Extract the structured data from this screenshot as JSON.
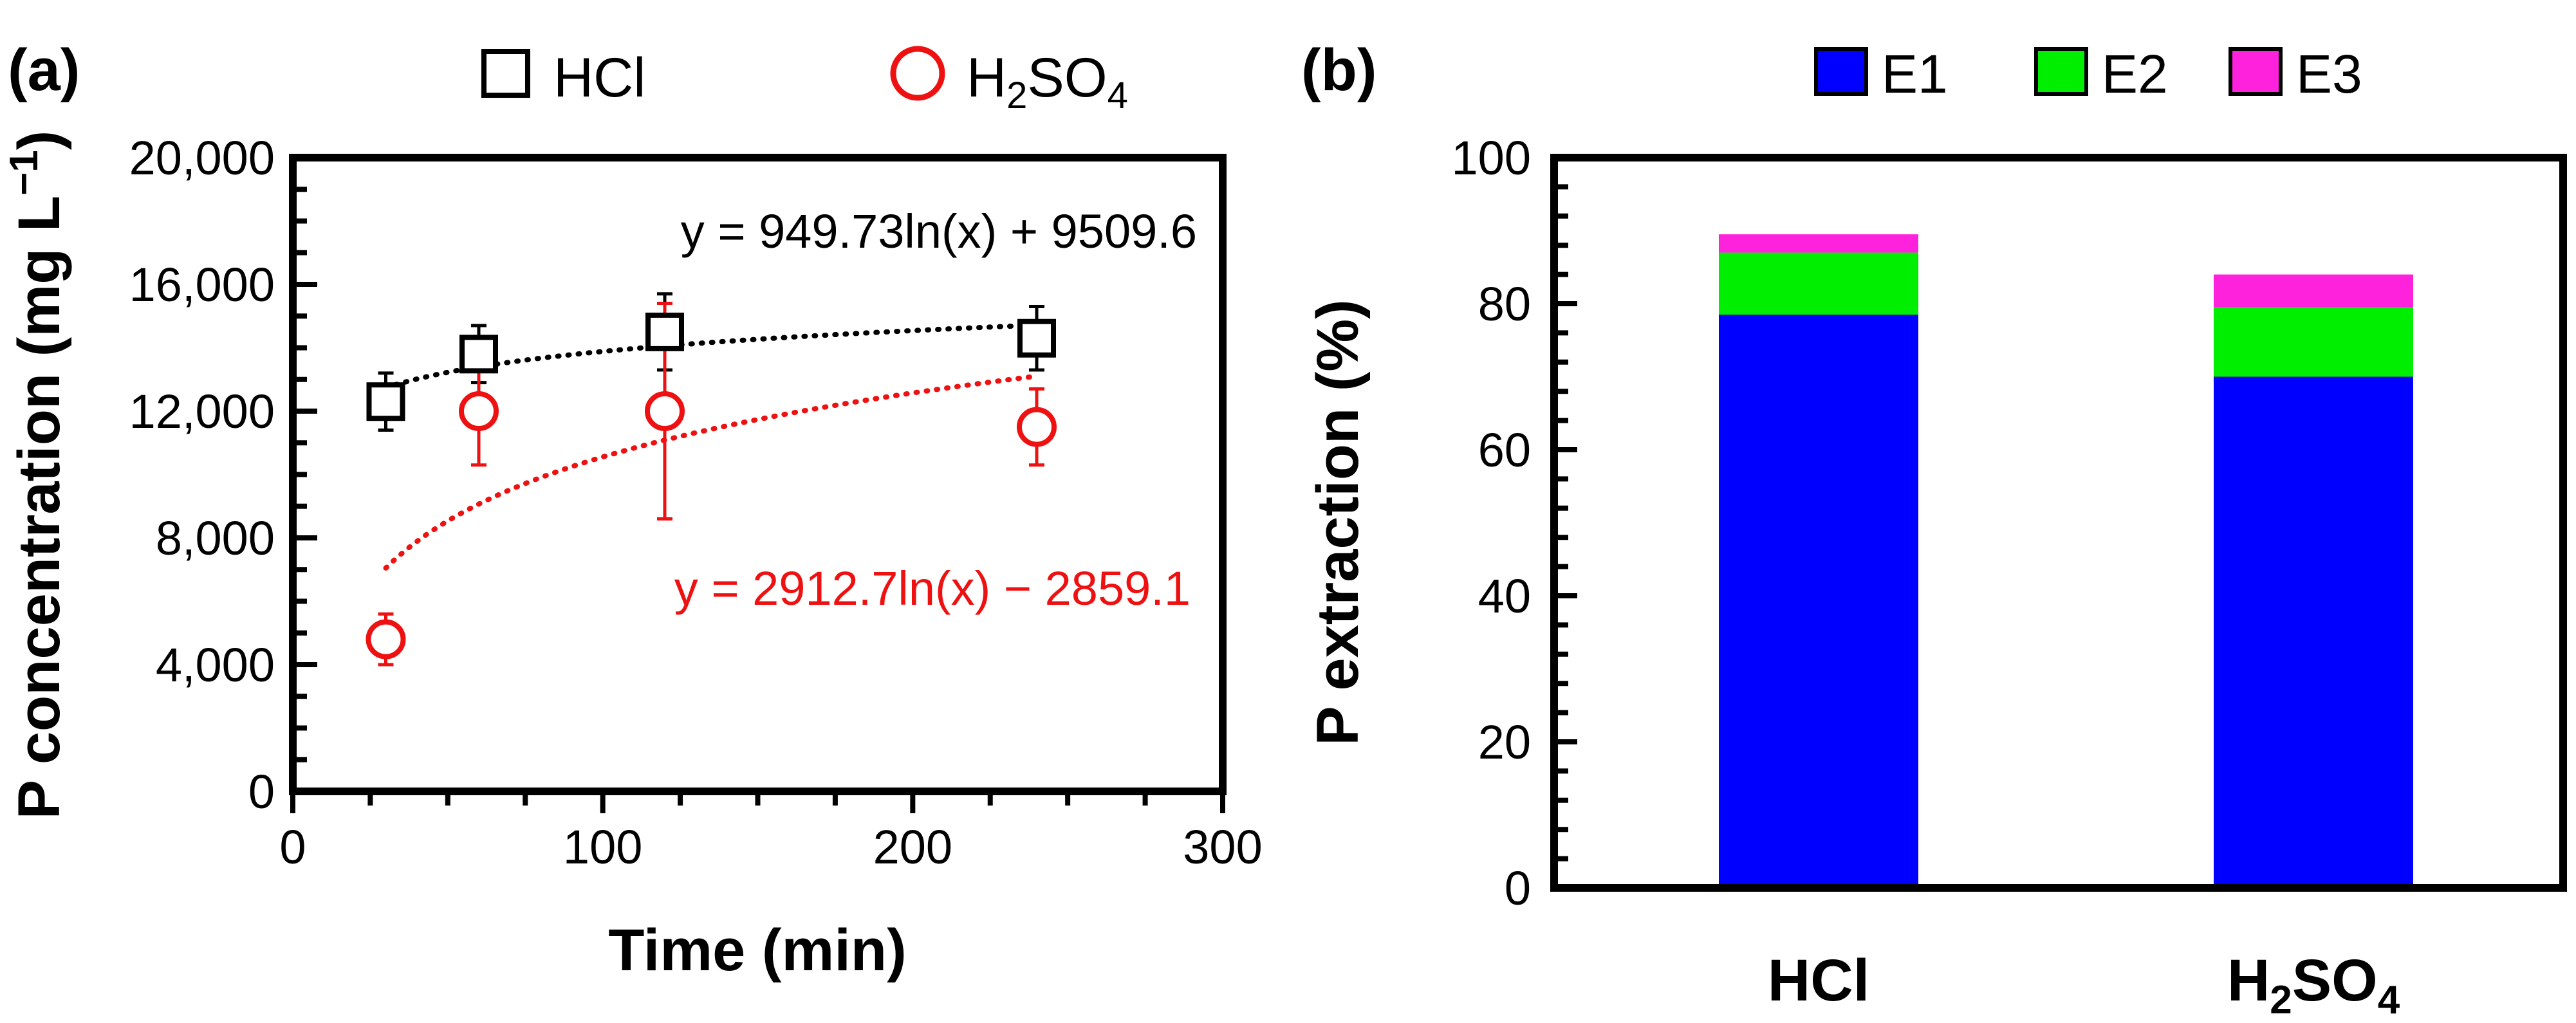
{
  "chart_data": [
    {
      "type": "scatter",
      "panel_label": "(a)",
      "xlabel": "Time (min)",
      "ylabel": "P concentration (mg L",
      "ylabel_sup": "−1",
      "ylabel_end": ")",
      "xlim": [
        0,
        300
      ],
      "ylim": [
        0,
        20000
      ],
      "x_ticks": [
        0,
        100,
        200,
        300
      ],
      "x_tick_labels": [
        "0",
        "100",
        "200",
        "300"
      ],
      "y_ticks": [
        0,
        4000,
        8000,
        12000,
        16000,
        20000
      ],
      "y_tick_labels": [
        "0",
        "4,000",
        "8,000",
        "12,000",
        "16,000",
        "20,000"
      ],
      "legend_position": "top",
      "series": [
        {
          "name": "HCl",
          "legend_label": "HCl",
          "marker": "square",
          "color": "#000000",
          "x": [
            30,
            60,
            120,
            240
          ],
          "y": [
            12300,
            13800,
            14500,
            14300
          ],
          "err": [
            900,
            900,
            1200,
            1000
          ],
          "fit": {
            "a": 949.73,
            "b": 9509.6,
            "equation": "y = 949.73ln(x) + 9509.6"
          }
        },
        {
          "name": "H2SO4",
          "legend_label": "H",
          "legend_sub1": "2",
          "legend_mid": "SO",
          "legend_sub2": "4",
          "marker": "circle",
          "color": "#ee1111",
          "x": [
            30,
            60,
            120,
            240
          ],
          "y": [
            4800,
            12000,
            12000,
            11500
          ],
          "err": [
            800,
            1700,
            3400,
            1200
          ],
          "fit": {
            "a": 2912.7,
            "b": -2859.1,
            "equation": "y = 2912.7ln(x) − 2859.1"
          }
        }
      ]
    },
    {
      "type": "bar",
      "stacked": true,
      "panel_label": "(b)",
      "ylabel": "P extraction (%)",
      "ylim": [
        0,
        100
      ],
      "y_ticks": [
        0,
        20,
        40,
        60,
        80,
        100
      ],
      "y_tick_labels": [
        "0",
        "20",
        "40",
        "60",
        "80",
        "100"
      ],
      "legend_position": "top",
      "categories": [
        "HCl",
        "H2SO4"
      ],
      "category_labels": [
        {
          "main": "HCl",
          "sub1": "",
          "mid": "",
          "sub2": ""
        },
        {
          "main": "H",
          "sub1": "2",
          "mid": "SO",
          "sub2": "4"
        }
      ],
      "series": [
        {
          "name": "E1",
          "color": "#0000ff",
          "values": [
            78.5,
            70.0
          ]
        },
        {
          "name": "E2",
          "color": "#00ee00",
          "values": [
            8.5,
            9.5
          ]
        },
        {
          "name": "E3",
          "color": "#ff22dd",
          "values": [
            2.5,
            4.5
          ]
        }
      ]
    }
  ]
}
